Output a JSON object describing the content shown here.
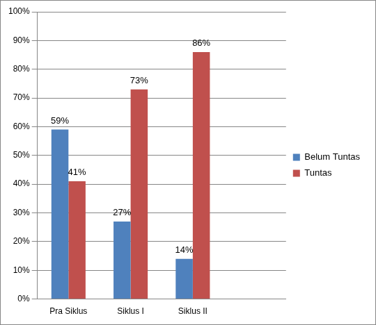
{
  "chart_data": {
    "type": "bar",
    "categories": [
      "Pra Siklus",
      "Siklus I",
      "Siklus II",
      null
    ],
    "series": [
      {
        "name": "Belum Tuntas",
        "color": "#4f81bd",
        "values": [
          59,
          27,
          14,
          null
        ],
        "value_labels": [
          "59%",
          "27%",
          "14%",
          null
        ]
      },
      {
        "name": "Tuntas",
        "color": "#c0504d",
        "values": [
          41,
          73,
          86,
          null
        ],
        "value_labels": [
          "41%",
          "73%",
          "86%",
          null
        ]
      }
    ],
    "ylim": [
      0,
      100
    ],
    "yticks": [
      {
        "value": 0,
        "label": "0%"
      },
      {
        "value": 10,
        "label": "10%"
      },
      {
        "value": 20,
        "label": "20%"
      },
      {
        "value": 30,
        "label": "30%"
      },
      {
        "value": 40,
        "label": "40%"
      },
      {
        "value": 50,
        "label": "50%"
      },
      {
        "value": 60,
        "label": "60%"
      },
      {
        "value": 70,
        "label": "70%"
      },
      {
        "value": 80,
        "label": "80%"
      },
      {
        "value": 90,
        "label": "90%"
      },
      {
        "value": 100,
        "label": "100%"
      }
    ],
    "grid": true,
    "legend": "right",
    "data_labels": true
  }
}
